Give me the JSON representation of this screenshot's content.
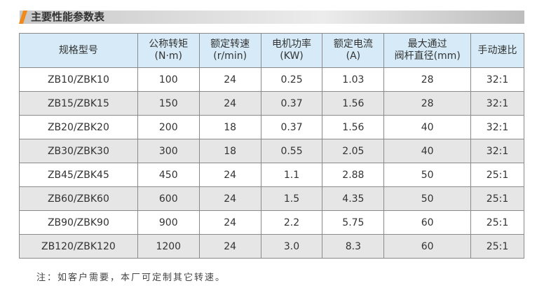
{
  "title": "主要性能参数表",
  "headers": [
    [
      "规格型号",
      ""
    ],
    [
      "公称转矩",
      "(N·m)"
    ],
    [
      "额定转速",
      "(r/min)"
    ],
    [
      "电机功率",
      "(KW)"
    ],
    [
      "额定电流",
      "(A)"
    ],
    [
      "最大通过",
      "阀杆直径(mm)"
    ],
    [
      "手动速比",
      ""
    ]
  ],
  "rows": [
    [
      "ZB10/ZBK10",
      "100",
      "24",
      "0.25",
      "1.03",
      "28",
      "32:1"
    ],
    [
      "ZB15/ZBK15",
      "150",
      "24",
      "0.37",
      "1.56",
      "28",
      "32:1"
    ],
    [
      "ZB20/ZBK20",
      "200",
      "18",
      "0.37",
      "1.56",
      "40",
      "32:1"
    ],
    [
      "ZB30/ZBK30",
      "300",
      "18",
      "0.55",
      "2.05",
      "40",
      "32:1"
    ],
    [
      "ZB45/ZBK45",
      "450",
      "24",
      "1.1",
      "2.88",
      "50",
      "25:1"
    ],
    [
      "ZB60/ZBK60",
      "600",
      "24",
      "1.5",
      "4.35",
      "50",
      "25:1"
    ],
    [
      "ZB90/ZBK90",
      "900",
      "24",
      "2.2",
      "5.75",
      "60",
      "25:1"
    ],
    [
      "ZB120/ZBK120",
      "1200",
      "24",
      "3.0",
      "8.3",
      "60",
      "25:1"
    ]
  ],
  "note": "注：如客户需要，本厂可定制其它转速。",
  "colors": {
    "accent": "#f08a1c",
    "header_bg": "#d6ebf7",
    "alt_row": "#e6e6e6"
  }
}
